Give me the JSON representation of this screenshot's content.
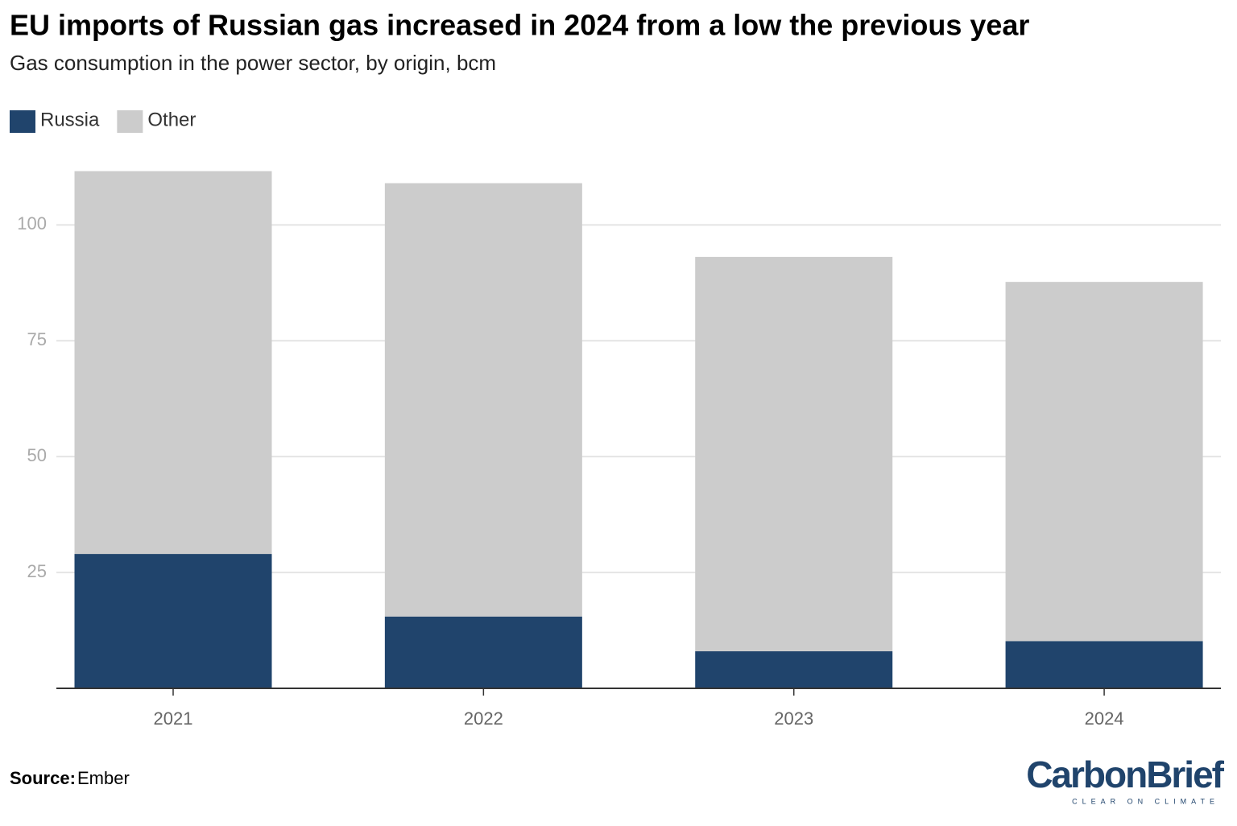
{
  "chart_data": {
    "type": "stacked-bar",
    "title": "EU imports of Russian gas increased in 2024 from a low the previous year",
    "subtitle": "Gas consumption in the power sector, by origin, bcm",
    "categories": [
      "2021",
      "2022",
      "2023",
      "2024"
    ],
    "series": [
      {
        "name": "Russia",
        "color": "#20446c",
        "values": [
          29.0,
          15.5,
          8.0,
          10.2
        ]
      },
      {
        "name": "Other",
        "color": "#cccccc",
        "values": [
          82.6,
          93.5,
          85.1,
          77.5
        ]
      }
    ],
    "ylim": [
      0,
      115
    ],
    "yticks": [
      25,
      50,
      75,
      100
    ],
    "grid": true,
    "source_label": "Source:",
    "source": "Ember",
    "logo": "CarbonBrief",
    "logo_tagline": "CLEAR ON CLIMATE"
  }
}
